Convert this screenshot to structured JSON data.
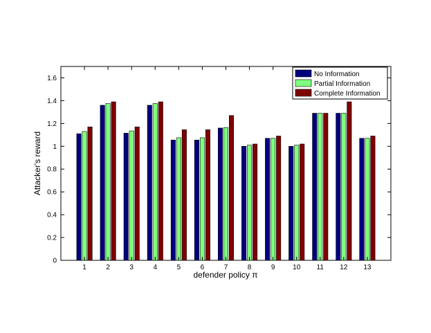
{
  "chart_data": {
    "type": "bar",
    "title": "",
    "xlabel": "defender policy π",
    "ylabel": "Attacker's reward",
    "ylim": [
      0,
      1.7
    ],
    "yticks": [
      0,
      0.2,
      0.4,
      0.6,
      0.8,
      1,
      1.2,
      1.4,
      1.6
    ],
    "ytick_labels": [
      "0",
      "0.2",
      "0.4",
      "0.6",
      "0.8",
      "1",
      "1.2",
      "1.4",
      "1.6"
    ],
    "categories": [
      "1",
      "2",
      "3",
      "4",
      "5",
      "6",
      "7",
      "8",
      "9",
      "10",
      "11",
      "12",
      "13"
    ],
    "grid": false,
    "legend_position": "top-right",
    "series": [
      {
        "name": "No Information",
        "color": "#00007f",
        "values": [
          1.11,
          1.36,
          1.115,
          1.36,
          1.055,
          1.055,
          1.16,
          1.0,
          1.07,
          1.0,
          1.29,
          1.29,
          1.07
        ]
      },
      {
        "name": "Partial Information",
        "color": "#7fff7f",
        "values": [
          1.13,
          1.375,
          1.135,
          1.375,
          1.075,
          1.075,
          1.165,
          1.01,
          1.07,
          1.01,
          1.29,
          1.29,
          1.07
        ]
      },
      {
        "name": "Complete Information",
        "color": "#7f0000",
        "values": [
          1.17,
          1.39,
          1.17,
          1.39,
          1.145,
          1.145,
          1.27,
          1.02,
          1.09,
          1.02,
          1.29,
          1.39,
          1.09
        ]
      }
    ]
  }
}
